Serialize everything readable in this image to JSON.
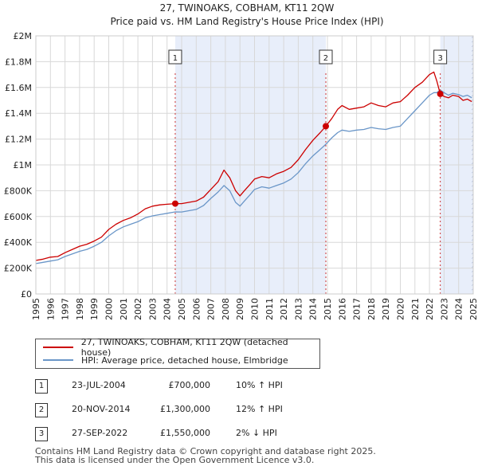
{
  "chart_data": {
    "type": "line",
    "title": "27, TWINOAKS, COBHAM, KT11 2QW",
    "subtitle": "Price paid vs. HM Land Registry's House Price Index (HPI)",
    "xlim": [
      1995,
      2025
    ],
    "ylim": [
      0,
      2000000
    ],
    "x_ticks": [
      "1995",
      "1996",
      "1997",
      "1998",
      "1999",
      "2000",
      "2001",
      "2002",
      "2003",
      "2004",
      "2005",
      "2006",
      "2007",
      "2008",
      "2009",
      "2010",
      "2011",
      "2012",
      "2013",
      "2014",
      "2015",
      "2016",
      "2017",
      "2018",
      "2019",
      "2020",
      "2021",
      "2022",
      "2023",
      "2024",
      "2025"
    ],
    "y_ticks": [
      {
        "value": 0,
        "label": "£0"
      },
      {
        "value": 200000,
        "label": "£200K"
      },
      {
        "value": 400000,
        "label": "£400K"
      },
      {
        "value": 600000,
        "label": "£600K"
      },
      {
        "value": 800000,
        "label": "£800K"
      },
      {
        "value": 1000000,
        "label": "£1M"
      },
      {
        "value": 1200000,
        "label": "£1.2M"
      },
      {
        "value": 1400000,
        "label": "£1.4M"
      },
      {
        "value": 1600000,
        "label": "£1.6M"
      },
      {
        "value": 1800000,
        "label": "£1.8M"
      },
      {
        "value": 2000000,
        "label": "£2M"
      }
    ],
    "shaded_ranges": [
      [
        2004.56,
        2014.89
      ],
      [
        2022.74,
        2025.0
      ]
    ],
    "hatched_from": 2024.9,
    "series": [
      {
        "name": "27, TWINOAKS, COBHAM, KT11 2QW (detached house)",
        "color": "#cc0000",
        "x": [
          1995.0,
          1995.5,
          1996.0,
          1996.5,
          1997.0,
          1997.5,
          1998.0,
          1998.5,
          1999.0,
          1999.5,
          2000.0,
          2000.5,
          2001.0,
          2001.5,
          2002.0,
          2002.5,
          2003.0,
          2003.5,
          2004.0,
          2004.56,
          2005.0,
          2005.5,
          2006.0,
          2006.5,
          2007.0,
          2007.5,
          2007.9,
          2008.3,
          2008.7,
          2009.0,
          2009.3,
          2009.7,
          2010.0,
          2010.5,
          2011.0,
          2011.5,
          2012.0,
          2012.5,
          2013.0,
          2013.5,
          2014.0,
          2014.5,
          2014.89,
          2015.3,
          2015.7,
          2016.0,
          2016.5,
          2017.0,
          2017.5,
          2018.0,
          2018.5,
          2019.0,
          2019.5,
          2020.0,
          2020.5,
          2021.0,
          2021.5,
          2022.0,
          2022.3,
          2022.5,
          2022.74,
          2023.0,
          2023.3,
          2023.6,
          2024.0,
          2024.3,
          2024.6,
          2024.9
        ],
        "values": [
          260000,
          270000,
          285000,
          290000,
          320000,
          345000,
          370000,
          385000,
          410000,
          440000,
          500000,
          540000,
          570000,
          590000,
          620000,
          660000,
          680000,
          690000,
          695000,
          700000,
          700000,
          710000,
          720000,
          750000,
          810000,
          870000,
          960000,
          900000,
          800000,
          760000,
          800000,
          850000,
          890000,
          910000,
          900000,
          930000,
          950000,
          980000,
          1040000,
          1120000,
          1190000,
          1250000,
          1300000,
          1360000,
          1430000,
          1460000,
          1430000,
          1440000,
          1450000,
          1480000,
          1460000,
          1450000,
          1480000,
          1490000,
          1540000,
          1600000,
          1640000,
          1700000,
          1720000,
          1650000,
          1550000,
          1530000,
          1520000,
          1540000,
          1530000,
          1500000,
          1510000,
          1490000
        ]
      },
      {
        "name": "HPI: Average price, detached house, Elmbridge",
        "color": "#6a96c8",
        "x": [
          1995.0,
          1995.5,
          1996.0,
          1996.5,
          1997.0,
          1997.5,
          1998.0,
          1998.5,
          1999.0,
          1999.5,
          2000.0,
          2000.5,
          2001.0,
          2001.5,
          2002.0,
          2002.5,
          2003.0,
          2003.5,
          2004.0,
          2004.56,
          2005.0,
          2005.5,
          2006.0,
          2006.5,
          2007.0,
          2007.5,
          2007.9,
          2008.3,
          2008.7,
          2009.0,
          2009.3,
          2009.7,
          2010.0,
          2010.5,
          2011.0,
          2011.5,
          2012.0,
          2012.5,
          2013.0,
          2013.5,
          2014.0,
          2014.5,
          2014.89,
          2015.3,
          2015.7,
          2016.0,
          2016.5,
          2017.0,
          2017.5,
          2018.0,
          2018.5,
          2019.0,
          2019.5,
          2020.0,
          2020.5,
          2021.0,
          2021.5,
          2022.0,
          2022.3,
          2022.5,
          2022.74,
          2023.0,
          2023.3,
          2023.6,
          2024.0,
          2024.3,
          2024.6,
          2024.9
        ],
        "values": [
          235000,
          245000,
          255000,
          265000,
          290000,
          310000,
          330000,
          345000,
          370000,
          400000,
          450000,
          490000,
          520000,
          540000,
          560000,
          590000,
          605000,
          615000,
          625000,
          636000,
          635000,
          645000,
          655000,
          685000,
          740000,
          790000,
          840000,
          800000,
          710000,
          680000,
          720000,
          770000,
          810000,
          830000,
          820000,
          840000,
          860000,
          890000,
          940000,
          1010000,
          1070000,
          1120000,
          1160000,
          1210000,
          1250000,
          1270000,
          1260000,
          1270000,
          1275000,
          1290000,
          1280000,
          1275000,
          1290000,
          1300000,
          1360000,
          1420000,
          1480000,
          1540000,
          1560000,
          1560000,
          1580000,
          1560000,
          1540000,
          1555000,
          1545000,
          1530000,
          1540000,
          1520000
        ]
      }
    ],
    "sale_points": [
      {
        "label": "1",
        "x": 2004.56,
        "value": 700000
      },
      {
        "label": "2",
        "x": 2014.89,
        "value": 1300000
      },
      {
        "label": "3",
        "x": 2022.74,
        "value": 1550000
      }
    ]
  },
  "legend": {
    "property_label": "27, TWINOAKS, COBHAM, KT11 2QW (detached house)",
    "hpi_label": "HPI: Average price, detached house, Elmbridge"
  },
  "sales": [
    {
      "num": "1",
      "date": "23-JUL-2004",
      "price": "£700,000",
      "hpi": "10% ↑ HPI"
    },
    {
      "num": "2",
      "date": "20-NOV-2014",
      "price": "£1,300,000",
      "hpi": "12% ↑ HPI"
    },
    {
      "num": "3",
      "date": "27-SEP-2022",
      "price": "£1,550,000",
      "hpi": "2% ↓ HPI"
    }
  ],
  "footer": {
    "line1": "Contains HM Land Registry data © Crown copyright and database right 2025.",
    "line2": "This data is licensed under the Open Government Licence v3.0."
  }
}
